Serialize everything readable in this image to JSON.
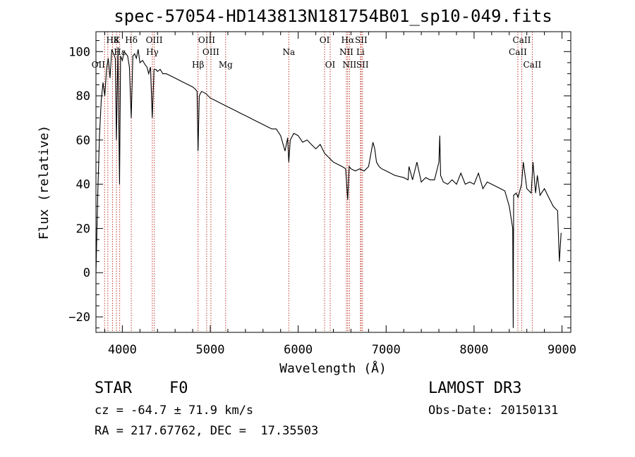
{
  "chart_data": {
    "type": "line",
    "title": "spec-57054-HD143813N181754B01_sp10-049.fits",
    "xlabel": "Wavelength (Å)",
    "ylabel": "Flux (relative)",
    "xlim": [
      3700,
      9100
    ],
    "ylim": [
      -27,
      109
    ],
    "xticks": [
      4000,
      5000,
      6000,
      7000,
      8000,
      9000
    ],
    "yticks": [
      -20,
      0,
      20,
      40,
      60,
      80,
      100
    ],
    "series": [
      {
        "name": "flux",
        "x": [
          3700,
          3720,
          3740,
          3760,
          3780,
          3800,
          3820,
          3840,
          3860,
          3880,
          3900,
          3920,
          3933,
          3950,
          3968,
          3980,
          4000,
          4020,
          4040,
          4060,
          4080,
          4101,
          4120,
          4140,
          4160,
          4180,
          4200,
          4230,
          4260,
          4280,
          4300,
          4320,
          4340,
          4360,
          4380,
          4400,
          4430,
          4460,
          4500,
          4550,
          4600,
          4650,
          4700,
          4750,
          4800,
          4830,
          4850,
          4861,
          4875,
          4900,
          4950,
          5000,
          5050,
          5100,
          5150,
          5200,
          5250,
          5300,
          5350,
          5400,
          5450,
          5500,
          5550,
          5600,
          5650,
          5700,
          5750,
          5800,
          5850,
          5880,
          5893,
          5910,
          5950,
          6000,
          6050,
          6100,
          6150,
          6200,
          6250,
          6300,
          6350,
          6400,
          6450,
          6500,
          6540,
          6563,
          6580,
          6600,
          6650,
          6700,
          6750,
          6800,
          6850,
          6870,
          6890,
          6920,
          6950,
          7000,
          7100,
          7200,
          7250,
          7260,
          7300,
          7350,
          7400,
          7450,
          7500,
          7550,
          7600,
          7610,
          7620,
          7650,
          7700,
          7750,
          7800,
          7850,
          7900,
          7950,
          8000,
          8050,
          8100,
          8150,
          8200,
          8250,
          8300,
          8350,
          8400,
          8440,
          8445,
          8450,
          8480,
          8500,
          8540,
          8560,
          8600,
          8650,
          8670,
          8700,
          8720,
          8750,
          8800,
          8850,
          8900,
          8950,
          8970,
          8990
        ],
        "values": [
          0,
          35,
          62,
          78,
          86,
          80,
          92,
          97,
          88,
          101,
          99,
          97,
          60,
          102,
          40,
          98,
          96,
          100,
          99,
          98,
          93,
          70,
          98,
          99,
          97,
          101,
          95,
          96,
          94,
          93,
          90,
          93,
          70,
          92,
          92,
          91,
          92,
          90,
          90,
          89,
          88,
          87,
          86,
          85,
          84,
          83,
          82,
          55,
          80,
          82,
          81,
          79,
          78,
          77,
          76,
          75,
          74,
          73,
          72,
          71,
          70,
          69,
          68,
          67,
          66,
          65,
          65,
          62,
          55,
          61,
          50,
          60,
          63,
          62,
          59,
          60,
          58,
          56,
          58,
          54,
          52,
          50,
          49,
          48,
          47,
          33,
          48,
          47,
          46,
          47,
          46,
          48,
          59,
          56,
          50,
          48,
          47,
          46,
          44,
          43,
          42,
          48,
          42,
          50,
          41,
          43,
          42,
          42,
          50,
          62,
          44,
          41,
          40,
          42,
          40,
          45,
          40,
          41,
          40,
          45,
          38,
          41,
          40,
          39,
          38,
          37,
          30,
          20,
          -25,
          35,
          36,
          34,
          40,
          50,
          38,
          36,
          50,
          36,
          44,
          35,
          38,
          34,
          30,
          28,
          5,
          18
        ]
      }
    ],
    "lines": [
      {
        "label": "H8",
        "x": 3889,
        "row": 0
      },
      {
        "label": "K",
        "x": 3934,
        "row": 0
      },
      {
        "label": "Hε",
        "x": 3970,
        "row": 1
      },
      {
        "label": "Hδ",
        "x": 4102,
        "row": 0
      },
      {
        "label": "OIII",
        "x": 4363,
        "row": 0
      },
      {
        "label": "Hγ",
        "x": 4341,
        "row": 1
      },
      {
        "label": "OII",
        "x": 3727,
        "row": 2
      },
      {
        "label": "OIII",
        "x": 4959,
        "row": 0
      },
      {
        "label": "OIII",
        "x": 5007,
        "row": 1
      },
      {
        "label": "Hβ",
        "x": 4861,
        "row": 2
      },
      {
        "label": "Mg",
        "x": 5175,
        "row": 2
      },
      {
        "label": "Na",
        "x": 5893,
        "row": 1
      },
      {
        "label": "OI",
        "x": 6300,
        "row": 0
      },
      {
        "label": "OI",
        "x": 6364,
        "row": 2
      },
      {
        "label": "Hα",
        "x": 6563,
        "row": 0
      },
      {
        "label": "SII",
        "x": 6716,
        "row": 0
      },
      {
        "label": "NII",
        "x": 6548,
        "row": 1
      },
      {
        "label": "Li",
        "x": 6708,
        "row": 1
      },
      {
        "label": "NII",
        "x": 6583,
        "row": 2
      },
      {
        "label": "SII",
        "x": 6731,
        "row": 2
      },
      {
        "label": "CaII",
        "x": 8542,
        "row": 0
      },
      {
        "label": "CaII",
        "x": 8498,
        "row": 1
      },
      {
        "label": "CaII",
        "x": 8662,
        "row": 2
      }
    ],
    "extra_lines_x": [
      3798,
      3835,
      3889,
      3934,
      3970,
      4102,
      4341,
      4363,
      4861,
      4959,
      5007,
      5175,
      5893,
      6300,
      6364,
      6548,
      6563,
      6583,
      6708,
      6716,
      6731,
      8498,
      8542,
      8662
    ]
  },
  "info": {
    "class": "STAR",
    "subclass": "F0",
    "survey": "LAMOST DR3",
    "cz": "cz = -64.7 ± 71.9 km/s",
    "obs_date": "Obs-Date: 20150131",
    "radec": "RA = 217.67762, DEC =  17.35503"
  }
}
